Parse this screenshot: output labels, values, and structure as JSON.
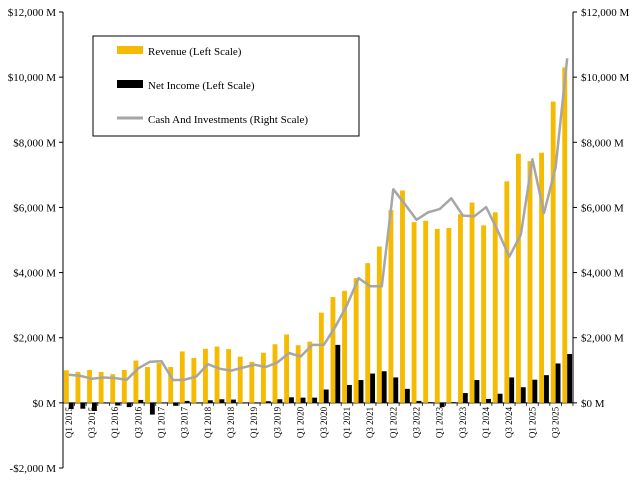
{
  "chart_data": {
    "type": "bar",
    "legend": {
      "position": "top-left",
      "items": [
        {
          "label": "Revenue (Left Scale)",
          "kind": "bar",
          "color": "#f5bb00"
        },
        {
          "label": "Net Income (Left Scale)",
          "kind": "bar",
          "color": "#000000"
        },
        {
          "label": "Cash And Investments (Right Scale)",
          "kind": "line",
          "color": "#a6a6a6"
        }
      ]
    },
    "left_axis": {
      "ylim": [
        -2000,
        12000
      ],
      "ticks": [
        -2000,
        0,
        2000,
        4000,
        6000,
        8000,
        10000,
        12000
      ],
      "tick_labels": [
        "-$2,000 M",
        "$0 M",
        "$2,000 M",
        "$4,000 M",
        "$6,000 M",
        "$8,000 M",
        "$10,000 M",
        "$12,000 M"
      ]
    },
    "right_axis": {
      "ylim": [
        -2000,
        12000
      ],
      "ticks": [
        0,
        2000,
        4000,
        6000,
        8000,
        10000,
        12000
      ],
      "tick_labels": [
        "$0 M",
        "$2,000 M",
        "$4,000 M",
        "$6,000 M",
        "$8,000 M",
        "$10,000 M",
        "$12,000 M"
      ]
    },
    "x_tick_labels": [
      "Q1 2015",
      "Q3 2015",
      "Q1 2016",
      "Q3 2016",
      "Q1 2017",
      "Q3 2017",
      "Q1 2018",
      "Q3 2018",
      "Q1 2019",
      "Q3 2019",
      "Q1 2020",
      "Q3 2020",
      "Q1 2021",
      "Q3 2021",
      "Q1 2022",
      "Q3 2022",
      "Q1 2023",
      "Q3 2023",
      "Q1 2024",
      "Q3 2024",
      "Q1 2025",
      "Q3 2025"
    ],
    "quarters": [
      "Q1 2015",
      "Q2 2015",
      "Q3 2015",
      "Q4 2015",
      "Q1 2016",
      "Q2 2016",
      "Q3 2016",
      "Q4 2016",
      "Q1 2017",
      "Q2 2017",
      "Q3 2017",
      "Q4 2017",
      "Q1 2018",
      "Q2 2018",
      "Q3 2018",
      "Q4 2018",
      "Q1 2019",
      "Q2 2019",
      "Q3 2019",
      "Q4 2019",
      "Q1 2020",
      "Q2 2020",
      "Q3 2020",
      "Q4 2020",
      "Q1 2021",
      "Q2 2021",
      "Q3 2021",
      "Q4 2021",
      "Q1 2022",
      "Q2 2022",
      "Q3 2022",
      "Q4 2022",
      "Q1 2023",
      "Q2 2023",
      "Q3 2023",
      "Q4 2023",
      "Q1 2024",
      "Q2 2024",
      "Q3 2024",
      "Q4 2024",
      "Q1 2025",
      "Q2 2025",
      "Q3 2025",
      "Q4 2025"
    ],
    "series": [
      {
        "name": "Revenue (Left Scale)",
        "values": [
          1000,
          950,
          1010,
          950,
          880,
          1010,
          1300,
          1100,
          1220,
          1100,
          1580,
          1380,
          1660,
          1730,
          1650,
          1420,
          1260,
          1540,
          1800,
          2100,
          1770,
          1880,
          2770,
          3250,
          3440,
          3830,
          4290,
          4800,
          5920,
          6520,
          5550,
          5590,
          5340,
          5370,
          5790,
          6150,
          5450,
          5850,
          6800,
          7650,
          7420,
          7680,
          9250,
          10300
        ]
      },
      {
        "name": "Net Income (Left Scale)",
        "values": [
          -190,
          -180,
          -250,
          -20,
          -80,
          -130,
          90,
          -360,
          -10,
          -90,
          60,
          -20,
          80,
          110,
          100,
          -10,
          -20,
          50,
          110,
          170,
          160,
          160,
          410,
          1780,
          550,
          700,
          900,
          970,
          780,
          430,
          60,
          20,
          -130,
          20,
          300,
          700,
          120,
          280,
          780,
          480,
          710,
          850,
          1210,
          1500
        ]
      },
      {
        "name": "Cash And Investments (Right Scale)",
        "values": [
          860,
          830,
          740,
          780,
          760,
          710,
          1060,
          1260,
          1280,
          700,
          710,
          810,
          1190,
          1050,
          990,
          1080,
          1170,
          1100,
          1240,
          1530,
          1420,
          1780,
          1780,
          2340,
          3000,
          3830,
          3580,
          3580,
          6560,
          6100,
          5620,
          5850,
          5950,
          6280,
          5750,
          5730,
          6010,
          5290,
          4490,
          5160,
          7480,
          5830,
          7230,
          10580
        ]
      }
    ]
  }
}
